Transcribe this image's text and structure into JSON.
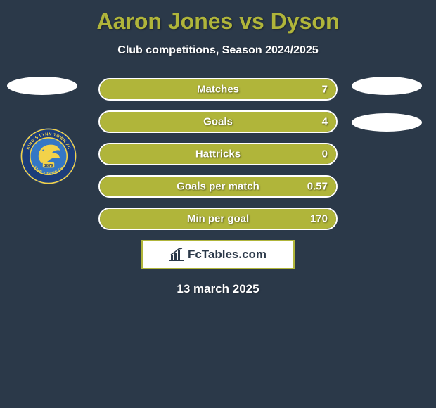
{
  "title_color": "#b0b53a",
  "title": "Aaron Jones vs Dyson",
  "subtitle": "Club competitions, Season 2024/2025",
  "date": "13 march 2025",
  "background_color": "#2b3949",
  "bar_color": "#b0b53a",
  "bar_border_color": "#ffffff",
  "avatar_oval_color": "#ffffff",
  "brand": {
    "text": "FcTables.com",
    "border_color": "#b0b53a",
    "text_color": "#2b3949",
    "bg_color": "#ffffff"
  },
  "badge": {
    "outer": "#1d3d7a",
    "ring": "#f2d24a",
    "inner": "#3577c5",
    "text_top": "KING'S LYNN TOWN FC",
    "text_bottom": "THE LINNETS",
    "year": "1879"
  },
  "stats": [
    {
      "label": "Matches",
      "value": "7",
      "fill": 1.0
    },
    {
      "label": "Goals",
      "value": "4",
      "fill": 1.0
    },
    {
      "label": "Hattricks",
      "value": "0",
      "fill": 1.0
    },
    {
      "label": "Goals per match",
      "value": "0.57",
      "fill": 1.0
    },
    {
      "label": "Min per goal",
      "value": "170",
      "fill": 1.0
    }
  ]
}
